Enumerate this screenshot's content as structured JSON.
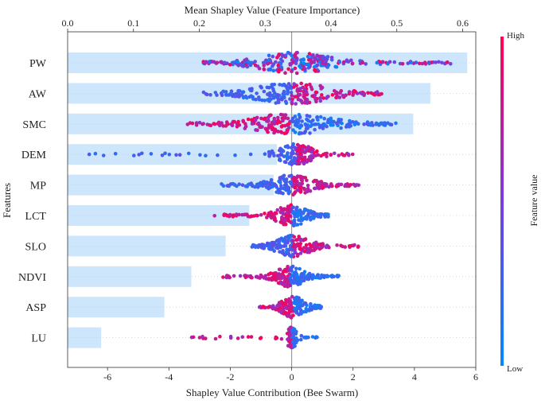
{
  "chart_data": {
    "type": "bar+beeswarm",
    "title_top": "Mean Shapley Value (Feature Importance)",
    "xlabel_bottom": "Shapley Value Contribution (Bee Swarm)",
    "ylabel": "Features",
    "colorbar": {
      "label": "Feature value",
      "high": "High",
      "low": "Low"
    },
    "top_axis": {
      "min": 0.0,
      "max": 0.62,
      "ticks": [
        "0.0",
        "0.1",
        "0.2",
        "0.3",
        "0.4",
        "0.5",
        "0.6"
      ]
    },
    "bottom_axis": {
      "min": -7.3,
      "max": 6.0,
      "ticks": [
        "-6",
        "-4",
        "-2",
        "0",
        "2",
        "4",
        "6"
      ]
    },
    "features": [
      {
        "name": "PW",
        "importance": 0.607,
        "swarm": {
          "min": -2.9,
          "max": 5.4,
          "core_left": -1.3,
          "core_right": 1.5,
          "low_side": "both",
          "count": 260
        }
      },
      {
        "name": "AW",
        "importance": 0.551,
        "swarm": {
          "min": -3.0,
          "max": 3.0,
          "core_left": -1.5,
          "core_right": 1.5,
          "low_side": "left",
          "count": 220
        }
      },
      {
        "name": "SMC",
        "importance": 0.525,
        "swarm": {
          "min": -3.4,
          "max": 3.4,
          "core_left": -1.5,
          "core_right": 1.5,
          "low_side": "right",
          "count": 240
        }
      },
      {
        "name": "DEM",
        "importance": 0.318,
        "swarm": {
          "min": -6.9,
          "max": 2.0,
          "core_left": -0.5,
          "core_right": 0.8,
          "low_side": "left",
          "count": 170
        }
      },
      {
        "name": "MP",
        "importance": 0.313,
        "swarm": {
          "min": -2.3,
          "max": 2.2,
          "core_left": -0.8,
          "core_right": 0.8,
          "low_side": "left",
          "count": 200
        }
      },
      {
        "name": "LCT",
        "importance": 0.276,
        "swarm": {
          "min": -2.6,
          "max": 1.2,
          "core_left": -0.6,
          "core_right": 0.6,
          "low_side": "right",
          "count": 190
        }
      },
      {
        "name": "SLO",
        "importance": 0.24,
        "swarm": {
          "min": -1.3,
          "max": 2.2,
          "core_left": -0.6,
          "core_right": 0.7,
          "low_side": "left",
          "count": 190
        }
      },
      {
        "name": "NDVI",
        "importance": 0.188,
        "swarm": {
          "min": -2.3,
          "max": 1.7,
          "core_left": -0.6,
          "core_right": 0.5,
          "low_side": "right",
          "count": 200
        }
      },
      {
        "name": "ASP",
        "importance": 0.147,
        "swarm": {
          "min": -1.1,
          "max": 1.0,
          "core_left": -0.4,
          "core_right": 0.5,
          "low_side": "right",
          "count": 150
        }
      },
      {
        "name": "LU",
        "importance": 0.051,
        "swarm": {
          "min": -3.4,
          "max": 0.9,
          "core_left": -0.1,
          "core_right": 0.1,
          "low_side": "right",
          "count": 130
        }
      }
    ],
    "colors": {
      "bar": "#cde6fb",
      "high": "#ff0052",
      "mid": "#7a3ce0",
      "low": "#008afb",
      "zero_line": "#999999"
    }
  }
}
